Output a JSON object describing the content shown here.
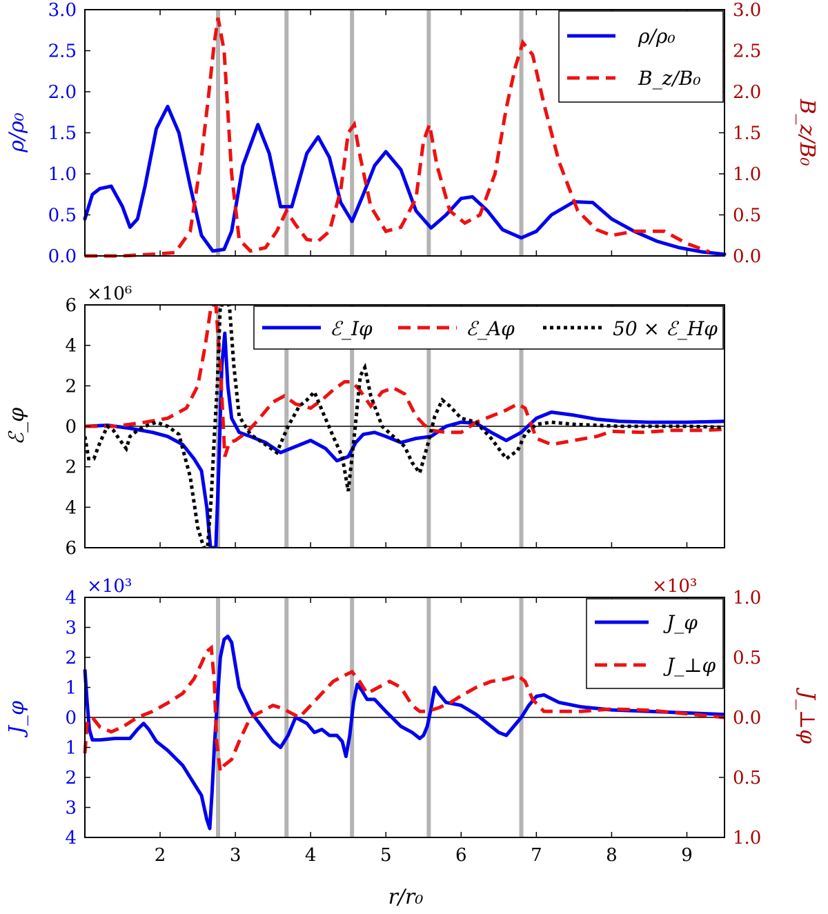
{
  "colors": {
    "blue": "#0000ee",
    "red": "#ee1111",
    "darkred": "#aa0000",
    "black": "#000000",
    "gray": "#b4b4b4"
  },
  "chart_data": [
    {
      "id": "density",
      "type": "line",
      "xlim": [
        1.0,
        9.5
      ],
      "ylim": [
        0,
        3.0
      ],
      "ylim_right": [
        0,
        3.0
      ],
      "ylabel": "ρ/ρ₀",
      "ylabel_right": "B_z/B₀",
      "yticks": [
        "0.0",
        "0.5",
        "1.0",
        "1.5",
        "2.0",
        "2.5",
        "3.0"
      ],
      "yticks_right": [
        "0.0",
        "0.5",
        "1.0",
        "1.5",
        "2.0",
        "2.5",
        "3.0"
      ],
      "vlines": [
        2.77,
        3.68,
        4.55,
        5.57,
        6.8
      ],
      "legend_position": "top-right",
      "series": [
        {
          "name": "ρ/ρ₀",
          "style": "solid",
          "color": "blue",
          "axis": "left",
          "x": [
            1.0,
            1.1,
            1.2,
            1.35,
            1.5,
            1.6,
            1.7,
            1.8,
            1.95,
            2.1,
            2.25,
            2.4,
            2.55,
            2.7,
            2.85,
            2.95,
            3.1,
            3.3,
            3.45,
            3.6,
            3.75,
            3.95,
            4.1,
            4.25,
            4.4,
            4.55,
            4.7,
            4.85,
            5.0,
            5.2,
            5.4,
            5.6,
            5.8,
            6.0,
            6.15,
            6.35,
            6.55,
            6.8,
            7.0,
            7.2,
            7.5,
            7.75,
            8.0,
            8.3,
            8.6,
            8.9,
            9.2,
            9.5
          ],
          "y": [
            0.45,
            0.75,
            0.82,
            0.85,
            0.6,
            0.35,
            0.45,
            0.85,
            1.55,
            1.82,
            1.5,
            0.85,
            0.25,
            0.06,
            0.08,
            0.3,
            1.1,
            1.6,
            1.25,
            0.6,
            0.6,
            1.25,
            1.45,
            1.2,
            0.65,
            0.42,
            0.75,
            1.1,
            1.27,
            1.05,
            0.55,
            0.34,
            0.5,
            0.7,
            0.72,
            0.55,
            0.32,
            0.22,
            0.3,
            0.5,
            0.66,
            0.65,
            0.45,
            0.3,
            0.18,
            0.1,
            0.05,
            0.02
          ]
        },
        {
          "name": "B_z/B₀",
          "style": "dashed",
          "color": "red",
          "axis": "right",
          "x": [
            1.0,
            1.5,
            1.9,
            2.2,
            2.4,
            2.55,
            2.65,
            2.72,
            2.77,
            2.85,
            2.95,
            3.05,
            3.2,
            3.4,
            3.55,
            3.68,
            3.8,
            3.95,
            4.1,
            4.25,
            4.4,
            4.5,
            4.58,
            4.66,
            4.8,
            5.0,
            5.2,
            5.4,
            5.5,
            5.58,
            5.68,
            5.85,
            6.05,
            6.25,
            6.45,
            6.6,
            6.72,
            6.82,
            6.95,
            7.1,
            7.3,
            7.55,
            7.8,
            8.0,
            8.3,
            8.7,
            9.0,
            9.3
          ],
          "y": [
            0.0,
            0.0,
            0.02,
            0.04,
            0.3,
            1.2,
            2.0,
            2.6,
            2.9,
            2.5,
            1.0,
            0.2,
            0.06,
            0.1,
            0.3,
            0.55,
            0.38,
            0.2,
            0.18,
            0.3,
            0.8,
            1.5,
            1.6,
            1.2,
            0.6,
            0.3,
            0.35,
            0.7,
            1.4,
            1.6,
            1.1,
            0.55,
            0.4,
            0.5,
            1.0,
            1.8,
            2.3,
            2.6,
            2.45,
            1.85,
            1.15,
            0.55,
            0.32,
            0.25,
            0.3,
            0.3,
            0.15,
            0.05
          ]
        }
      ],
      "legend": [
        "ρ/ρ₀",
        "B_z/B₀"
      ]
    },
    {
      "id": "emf",
      "type": "line",
      "xlim": [
        1.0,
        9.5
      ],
      "ylim": [
        -6,
        6
      ],
      "ylabel": "ℰ_φ",
      "multiplier": "×10⁶",
      "yticks": [
        "6",
        "4",
        "2",
        "0",
        "2",
        "4",
        "6"
      ],
      "ytick_values": [
        -6,
        -4,
        -2,
        0,
        2,
        4,
        6
      ],
      "zero_line": true,
      "vlines": [
        2.77,
        3.68,
        4.55,
        5.57,
        6.8
      ],
      "legend_position": "top-right",
      "series": [
        {
          "name": "ℰ_Iφ",
          "style": "solid",
          "color": "blue",
          "x": [
            1.0,
            1.3,
            1.6,
            1.9,
            2.1,
            2.3,
            2.45,
            2.55,
            2.62,
            2.67,
            2.7,
            2.74,
            2.78,
            2.82,
            2.86,
            2.9,
            2.95,
            3.05,
            3.2,
            3.4,
            3.6,
            3.8,
            4.0,
            4.2,
            4.35,
            4.5,
            4.6,
            4.7,
            4.85,
            5.0,
            5.2,
            5.4,
            5.6,
            5.8,
            6.0,
            6.2,
            6.4,
            6.6,
            6.8,
            7.0,
            7.2,
            7.5,
            7.8,
            8.1,
            8.5,
            9.0,
            9.5
          ],
          "y": [
            0.0,
            0.05,
            -0.1,
            -0.3,
            -0.5,
            -0.9,
            -1.6,
            -2.2,
            -4.0,
            -6.0,
            -6.0,
            -6.0,
            -2.0,
            3.0,
            4.6,
            2.0,
            0.4,
            -0.3,
            -0.5,
            -0.8,
            -1.3,
            -1.0,
            -0.7,
            -1.1,
            -1.7,
            -1.5,
            -0.8,
            -0.4,
            -0.3,
            -0.5,
            -0.8,
            -0.6,
            -0.5,
            0.0,
            0.2,
            0.15,
            -0.3,
            -0.7,
            -0.3,
            0.4,
            0.7,
            0.55,
            0.35,
            0.25,
            0.2,
            0.2,
            0.25
          ]
        },
        {
          "name": "ℰ_Aφ",
          "style": "dashed",
          "color": "red",
          "x": [
            1.0,
            1.4,
            1.8,
            2.1,
            2.35,
            2.5,
            2.6,
            2.68,
            2.74,
            2.8,
            2.86,
            2.92,
            3.0,
            3.15,
            3.3,
            3.5,
            3.65,
            3.8,
            4.0,
            4.15,
            4.3,
            4.45,
            4.55,
            4.65,
            4.8,
            4.95,
            5.1,
            5.25,
            5.4,
            5.5,
            5.6,
            5.8,
            6.0,
            6.2,
            6.4,
            6.6,
            6.75,
            6.85,
            7.0,
            7.2,
            7.5,
            7.8,
            8.0,
            8.4,
            8.8,
            9.2,
            9.5
          ],
          "y": [
            0.0,
            0.0,
            0.2,
            0.4,
            0.9,
            2.0,
            4.0,
            6.0,
            6.0,
            3.0,
            -1.5,
            -0.8,
            -0.7,
            -0.3,
            0.3,
            1.2,
            1.5,
            1.1,
            0.9,
            1.3,
            1.8,
            2.2,
            2.2,
            1.8,
            1.0,
            1.7,
            1.9,
            1.6,
            0.5,
            0.1,
            -0.2,
            -0.3,
            -0.3,
            0.2,
            0.5,
            0.8,
            1.1,
            0.9,
            -0.6,
            -0.9,
            -0.7,
            -0.5,
            -0.25,
            -0.3,
            -0.2,
            -0.2,
            -0.15
          ]
        },
        {
          "name": "50 × ℰ_Hφ",
          "style": "dotted",
          "color": "black",
          "x": [
            1.0,
            1.05,
            1.12,
            1.2,
            1.3,
            1.38,
            1.45,
            1.55,
            1.6,
            1.7,
            1.8,
            1.95,
            2.1,
            2.25,
            2.4,
            2.5,
            2.58,
            2.63,
            2.68,
            2.72,
            2.76,
            2.8,
            2.84,
            2.88,
            2.92,
            2.98,
            3.05,
            3.2,
            3.4,
            3.55,
            3.7,
            3.85,
            3.95,
            4.05,
            4.15,
            4.3,
            4.42,
            4.5,
            4.58,
            4.66,
            4.72,
            4.8,
            4.95,
            5.1,
            5.25,
            5.35,
            5.45,
            5.55,
            5.65,
            5.75,
            5.85,
            6.0,
            6.2,
            6.4,
            6.6,
            6.75,
            6.85,
            7.0,
            7.2,
            7.5,
            7.8,
            8.1,
            8.5,
            9.0,
            9.5
          ],
          "y": [
            -0.5,
            -1.6,
            -1.6,
            -0.8,
            0.0,
            -0.2,
            -0.6,
            -1.1,
            -0.5,
            -0.2,
            0.0,
            0.2,
            0.0,
            -0.4,
            -2.5,
            -5.0,
            -6.0,
            -6.0,
            -3.5,
            -0.5,
            2.0,
            6.0,
            6.0,
            6.0,
            6.0,
            3.0,
            0.5,
            -0.4,
            -0.9,
            -1.3,
            0.0,
            1.0,
            1.3,
            1.7,
            0.8,
            -0.5,
            -1.5,
            -3.2,
            -0.5,
            2.5,
            2.9,
            1.5,
            0.0,
            -0.5,
            -1.0,
            -1.8,
            -2.3,
            -1.0,
            0.5,
            1.3,
            1.0,
            0.4,
            0.2,
            -0.6,
            -1.6,
            -1.2,
            -0.4,
            0.1,
            0.2,
            0.1,
            0.05,
            0.0,
            0.0,
            0.0,
            -0.05
          ]
        }
      ],
      "legend": [
        "ℰ_Iφ",
        "ℰ_Aφ",
        "50 × ℰ_Hφ"
      ]
    },
    {
      "id": "current",
      "type": "line",
      "xlim": [
        1.0,
        9.5
      ],
      "ylim": [
        -4,
        4
      ],
      "ylim_right": [
        -1.0,
        1.0
      ],
      "xlabel": "r/r₀",
      "ylabel": "J_φ",
      "ylabel_right": "J_⊥φ",
      "multiplier": "×10³",
      "multiplier_right": "×10³",
      "xticks": [
        "2",
        "3",
        "4",
        "5",
        "6",
        "7",
        "8",
        "9"
      ],
      "xtick_values": [
        2,
        3,
        4,
        5,
        6,
        7,
        8,
        9
      ],
      "yticks": [
        "4",
        "3",
        "2",
        "1",
        "0",
        "1",
        "2",
        "3",
        "4"
      ],
      "ytick_values": [
        -4,
        -3,
        -2,
        -1,
        0,
        1,
        2,
        3,
        4
      ],
      "yticks_right": [
        "1.0",
        "0.5",
        "0.0",
        "0.5",
        "1.0"
      ],
      "ytick_values_right": [
        -1.0,
        -0.5,
        0.0,
        0.5,
        1.0
      ],
      "zero_line": true,
      "vlines": [
        2.77,
        3.68,
        4.55,
        5.57,
        6.8
      ],
      "legend_position": "top-right",
      "series": [
        {
          "name": "J_φ",
          "style": "solid",
          "color": "blue",
          "axis": "left",
          "x": [
            1.0,
            1.03,
            1.06,
            1.1,
            1.2,
            1.4,
            1.6,
            1.7,
            1.78,
            1.85,
            1.95,
            2.1,
            2.3,
            2.45,
            2.55,
            2.62,
            2.66,
            2.69,
            2.72,
            2.76,
            2.8,
            2.85,
            2.9,
            2.95,
            3.05,
            3.2,
            3.35,
            3.5,
            3.6,
            3.7,
            3.8,
            3.95,
            4.05,
            4.15,
            4.25,
            4.35,
            4.42,
            4.47,
            4.52,
            4.57,
            4.62,
            4.68,
            4.75,
            4.85,
            5.0,
            5.2,
            5.35,
            5.45,
            5.5,
            5.55,
            5.6,
            5.65,
            5.7,
            5.8,
            6.0,
            6.2,
            6.4,
            6.5,
            6.6,
            6.7,
            6.8,
            6.9,
            7.0,
            7.1,
            7.3,
            7.6,
            8.0,
            8.5,
            9.0,
            9.5
          ],
          "y": [
            1.6,
            0.5,
            -0.4,
            -0.75,
            -0.75,
            -0.7,
            -0.7,
            -0.4,
            -0.2,
            -0.4,
            -0.8,
            -1.1,
            -1.6,
            -2.2,
            -2.6,
            -3.4,
            -3.7,
            -2.5,
            -1.0,
            0.5,
            2.0,
            2.6,
            2.7,
            2.5,
            1.0,
            0.2,
            -0.3,
            -0.8,
            -1.0,
            -0.6,
            0.0,
            -0.2,
            -0.5,
            -0.4,
            -0.6,
            -0.6,
            -0.8,
            -1.3,
            -0.6,
            0.5,
            1.1,
            0.9,
            0.6,
            0.6,
            0.2,
            -0.3,
            -0.5,
            -0.7,
            -0.6,
            -0.3,
            0.3,
            1.0,
            0.8,
            0.5,
            0.4,
            0.1,
            -0.3,
            -0.5,
            -0.6,
            -0.3,
            0.0,
            0.4,
            0.7,
            0.75,
            0.5,
            0.35,
            0.25,
            0.2,
            0.15,
            0.1
          ]
        },
        {
          "name": "J_⊥φ",
          "style": "dashed",
          "color": "red",
          "axis": "right",
          "x": [
            1.0,
            1.03,
            1.1,
            1.2,
            1.35,
            1.5,
            1.7,
            1.9,
            2.1,
            2.3,
            2.45,
            2.55,
            2.62,
            2.68,
            2.72,
            2.75,
            2.8,
            2.85,
            2.95,
            3.05,
            3.2,
            3.35,
            3.5,
            3.6,
            3.7,
            3.85,
            4.0,
            4.15,
            4.3,
            4.45,
            4.55,
            4.65,
            4.75,
            4.9,
            5.05,
            5.2,
            5.35,
            5.45,
            5.55,
            5.7,
            5.85,
            6.0,
            6.2,
            6.4,
            6.6,
            6.75,
            6.85,
            6.95,
            7.1,
            7.3,
            7.6,
            8.0,
            8.5,
            9.0,
            9.5
          ],
          "y": [
            -0.3,
            -0.05,
            0.0,
            -0.08,
            -0.12,
            -0.08,
            0.0,
            0.05,
            0.12,
            0.2,
            0.32,
            0.45,
            0.55,
            0.58,
            0.3,
            -0.2,
            -0.45,
            -0.4,
            -0.35,
            -0.2,
            0.0,
            0.05,
            0.1,
            0.08,
            0.05,
            0.0,
            0.1,
            0.2,
            0.3,
            0.35,
            0.38,
            0.3,
            0.2,
            0.25,
            0.3,
            0.25,
            0.1,
            0.05,
            0.05,
            0.08,
            0.12,
            0.18,
            0.25,
            0.3,
            0.32,
            0.35,
            0.3,
            0.15,
            0.05,
            0.05,
            0.05,
            0.07,
            0.06,
            0.03,
            0.0
          ]
        }
      ],
      "legend": [
        "J_φ",
        "J_⊥φ"
      ]
    }
  ]
}
